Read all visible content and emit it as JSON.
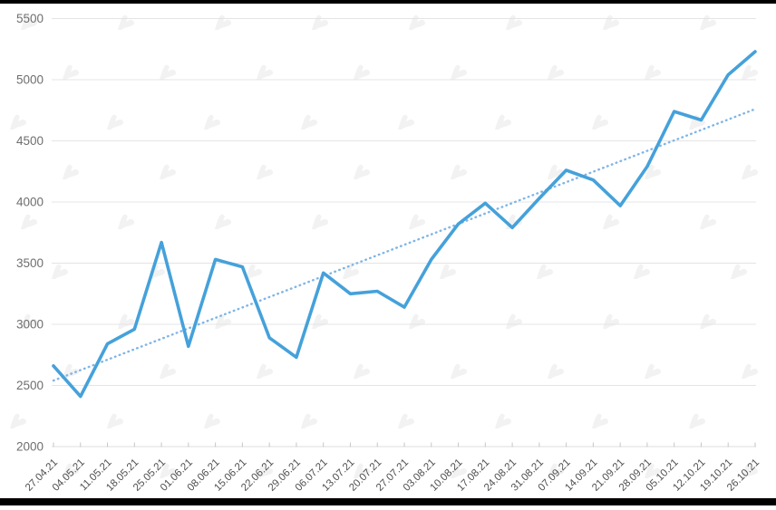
{
  "chart_data": {
    "type": "line",
    "title": "",
    "x": [
      "27.04.21",
      "04.05.21",
      "11.05.21",
      "18.05.21",
      "25.05.21",
      "01.06.21",
      "08.06.21",
      "15.06.21",
      "22.06.21",
      "29.06.21",
      "06.07.21",
      "13.07.21",
      "20.07.21",
      "27.07.21",
      "03.08.21",
      "10.08.21",
      "17.08.21",
      "24.08.21",
      "31.08.21",
      "07.09.21",
      "14.09.21",
      "21.09.21",
      "28.09.21",
      "05.10.21",
      "12.10.21",
      "19.10.21",
      "26.10.21"
    ],
    "series": [
      {
        "name": "value",
        "style": "solid",
        "color": "#45a1da",
        "values": [
          2660,
          2410,
          2840,
          2960,
          3670,
          2820,
          3530,
          3470,
          2890,
          2730,
          3420,
          3250,
          3270,
          3140,
          3530,
          3820,
          3990,
          3790,
          4030,
          4260,
          4180,
          3970,
          4290,
          4740,
          4670,
          5040,
          5230
        ]
      },
      {
        "name": "trend",
        "style": "dotted",
        "color": "#7fb5e5",
        "trend_start": 2540,
        "trend_end": 4760
      }
    ],
    "ylim": [
      2000,
      5500
    ],
    "ytick_step": 500,
    "grid": true,
    "legend": false,
    "x_label_rotation": -45
  },
  "y_axis": {
    "labels": [
      "5500",
      "5000",
      "4500",
      "4000",
      "3500",
      "3000",
      "2500",
      "2000"
    ]
  },
  "x_axis": {
    "labels": [
      "27.04.21",
      "04.05.21",
      "11.05.21",
      "18.05.21",
      "25.05.21",
      "01.06.21",
      "08.06.21",
      "15.06.21",
      "22.06.21",
      "29.06.21",
      "06.07.21",
      "13.07.21",
      "20.07.21",
      "27.07.21",
      "03.08.21",
      "10.08.21",
      "17.08.21",
      "24.08.21",
      "31.08.21",
      "07.09.21",
      "14.09.21",
      "21.09.21",
      "28.09.21",
      "05.10.21",
      "12.10.21",
      "19.10.21",
      "26.10.21"
    ]
  },
  "watermark": {
    "icon": "forklog-arm-logo",
    "color": "#f2f2f2"
  },
  "colors": {
    "line": "#45a1da",
    "trend": "#7fb5e5",
    "grid": "#e4e4e4",
    "axis_line": "#dcdcdc",
    "tick": "#c6c6c6",
    "y_label_text": "#6e6e6e",
    "x_label_text": "#4f4f4f",
    "letterbox": "#000000",
    "background": "#ffffff"
  }
}
